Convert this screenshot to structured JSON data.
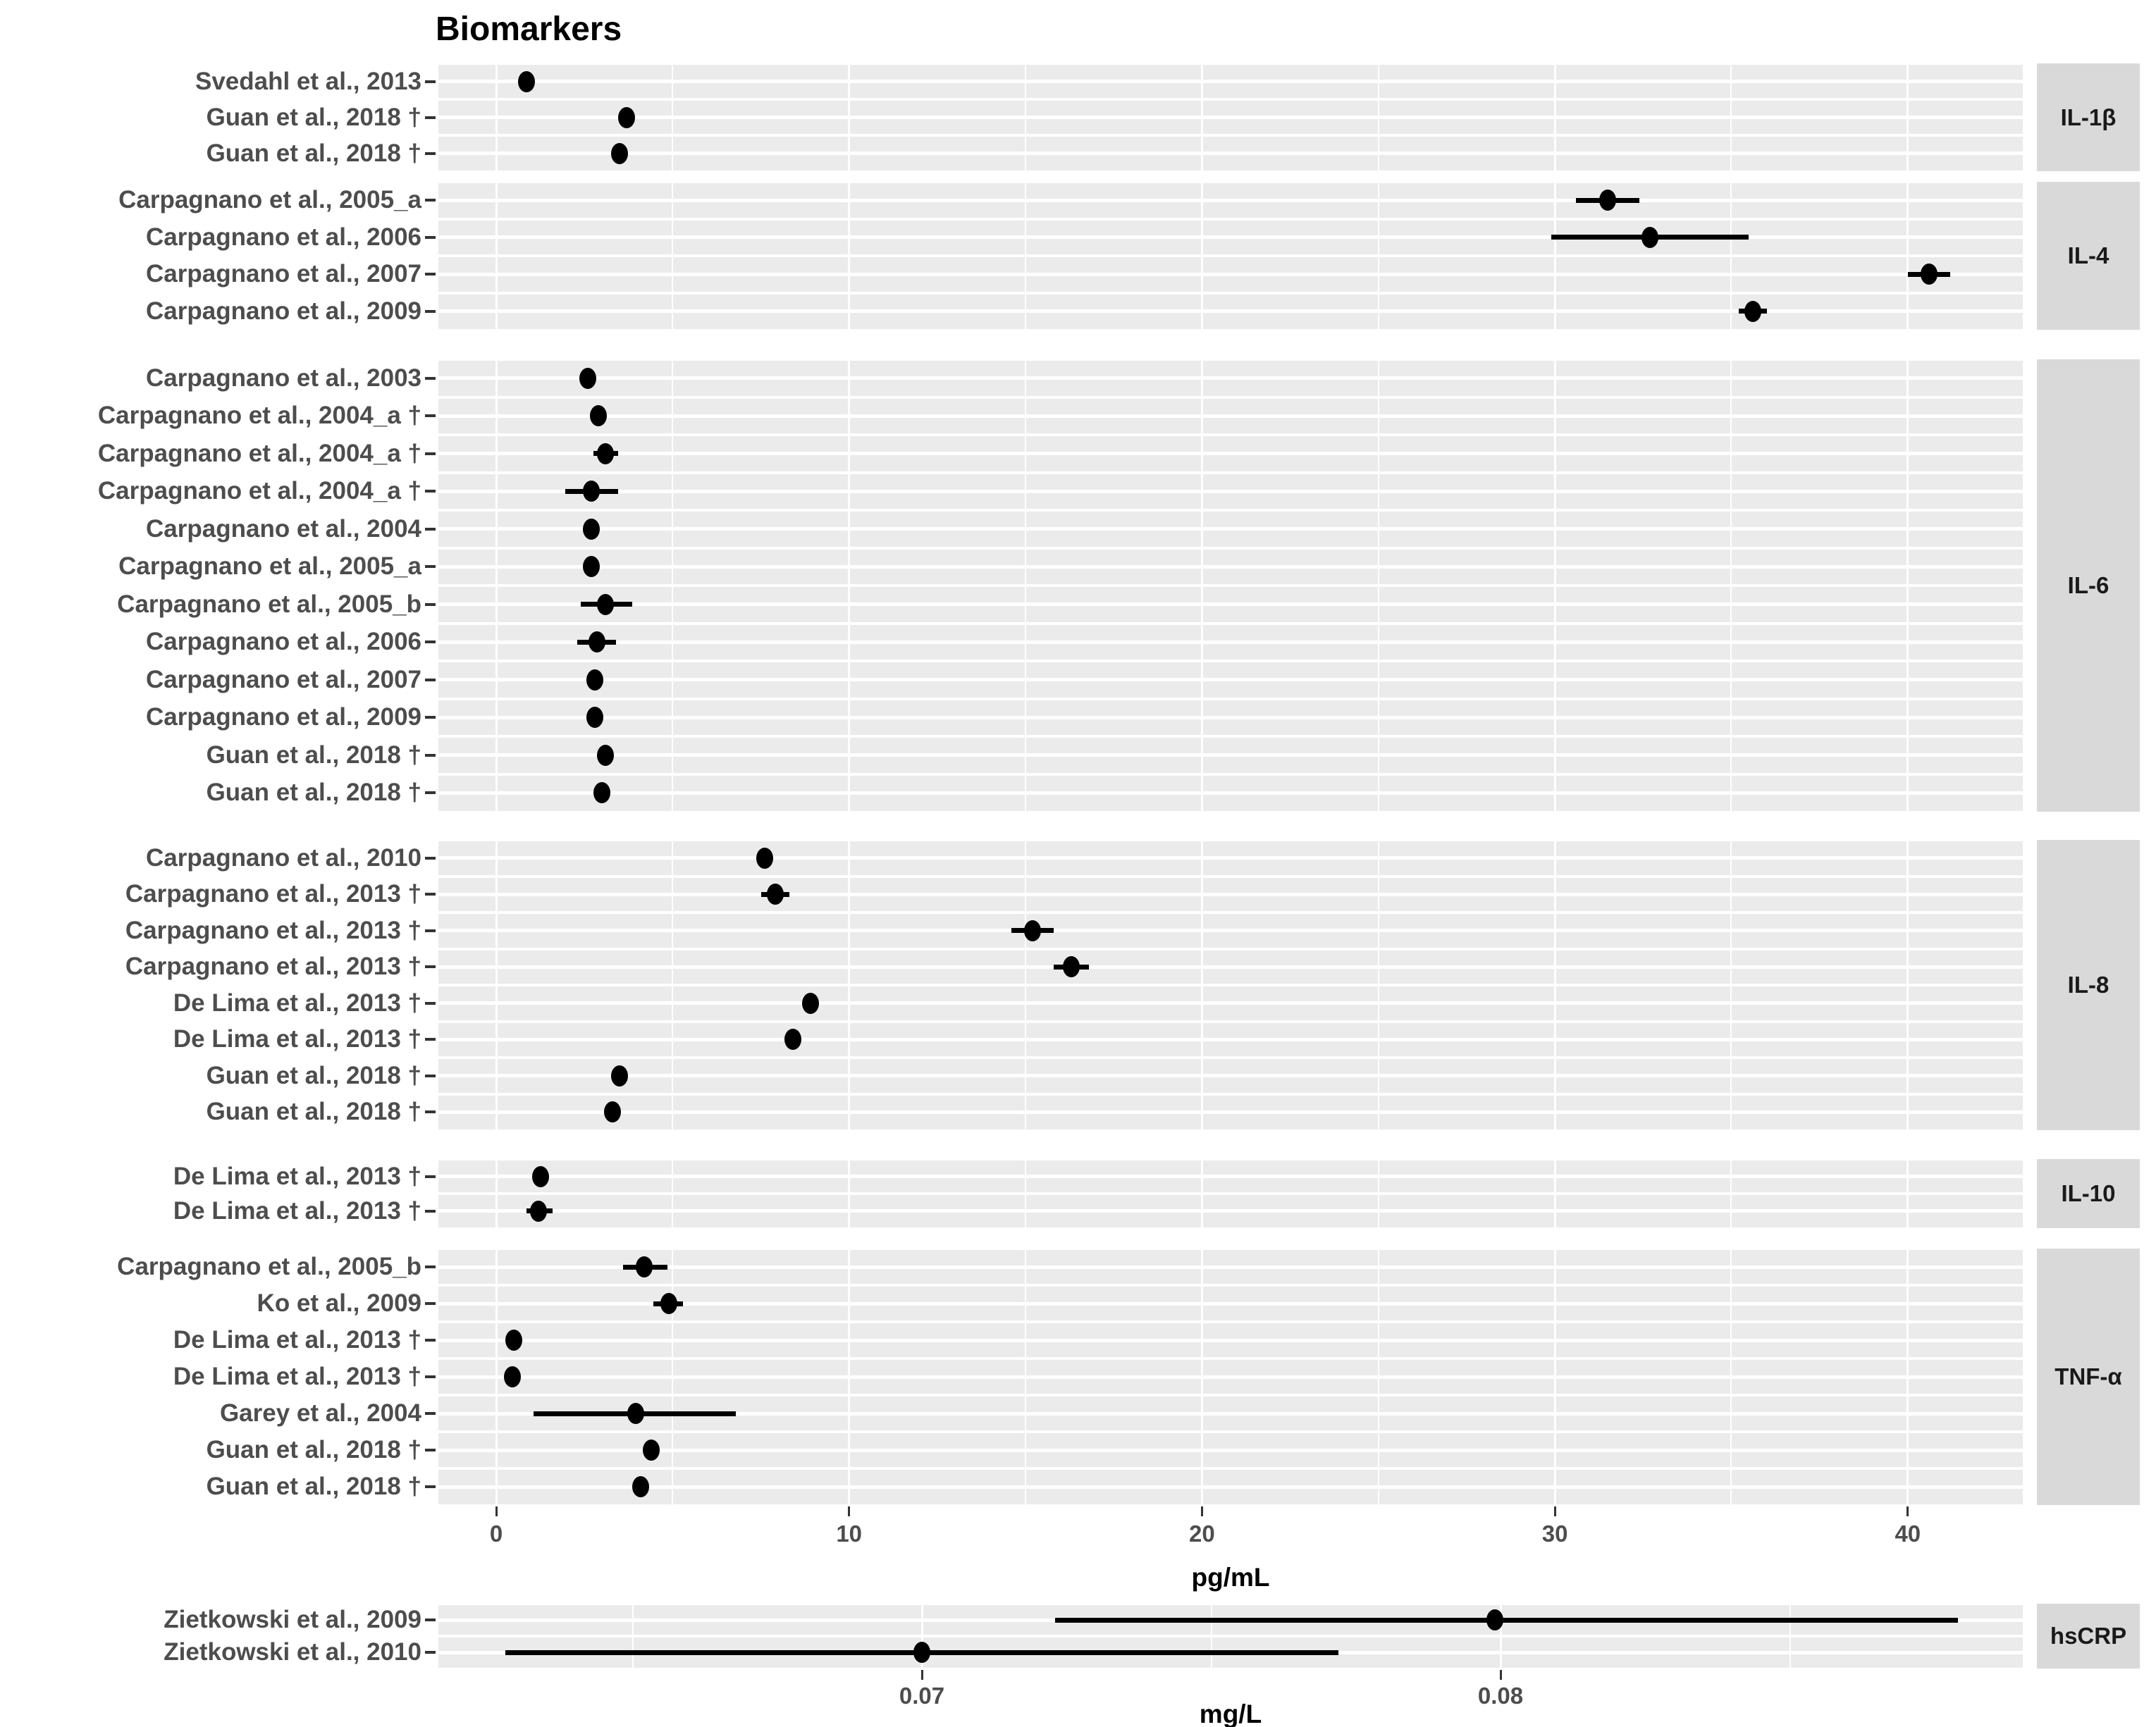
{
  "title": "Biomarkers",
  "colors": {
    "panel_bg": "#ebebeb",
    "grid": "#ffffff",
    "strip_bg": "#d9d9d9",
    "point": "#000000",
    "axis_text": "#4d4d4d",
    "title_text": "#000000"
  },
  "chart_data": {
    "type": "scatter",
    "subtype": "forest-plot-with-error-bars",
    "title": "Biomarkers",
    "legend": "none",
    "x_axis_pg": {
      "label": "pg/mL",
      "ticks": [
        {
          "v": 0,
          "label": "0"
        },
        {
          "v": 10,
          "label": "10"
        },
        {
          "v": 20,
          "label": "20"
        },
        {
          "v": 30,
          "label": "30"
        },
        {
          "v": 40,
          "label": "40"
        }
      ],
      "minor_ticks": [
        5,
        15,
        25,
        35
      ],
      "range": [
        -1.65,
        43.3
      ]
    },
    "x_axis_mg": {
      "label": "mg/L",
      "ticks": [
        {
          "v": 0.07,
          "label": "0.07"
        },
        {
          "v": 0.08,
          "label": "0.08"
        }
      ],
      "minor_ticks": [
        0.065,
        0.075,
        0.085
      ],
      "range": [
        0.0616,
        0.0889
      ]
    },
    "panels": [
      {
        "facet": "IL-1β",
        "unit": "pg/mL",
        "rows": [
          {
            "study": "Svedahl et al., 2013",
            "value": 0.85,
            "lo": null,
            "hi": null
          },
          {
            "study": "Guan et al., 2018 †",
            "value": 3.7,
            "lo": 3.5,
            "hi": 3.9
          },
          {
            "study": "Guan et al., 2018 †",
            "value": 3.5,
            "lo": 3.3,
            "hi": 3.7
          }
        ]
      },
      {
        "facet": "IL-4",
        "unit": "pg/mL",
        "rows": [
          {
            "study": "Carpagnano et al., 2005_a",
            "value": 31.5,
            "lo": 30.6,
            "hi": 32.4
          },
          {
            "study": "Carpagnano et al., 2006",
            "value": 32.7,
            "lo": 29.9,
            "hi": 35.5
          },
          {
            "study": "Carpagnano et al., 2007",
            "value": 40.6,
            "lo": 40.0,
            "hi": 41.2
          },
          {
            "study": "Carpagnano et al., 2009",
            "value": 35.6,
            "lo": 35.2,
            "hi": 36.0
          }
        ]
      },
      {
        "facet": "IL-6",
        "unit": "pg/mL",
        "rows": [
          {
            "study": "Carpagnano et al., 2003",
            "value": 2.6,
            "lo": null,
            "hi": null
          },
          {
            "study": "Carpagnano et al., 2004_a †",
            "value": 2.9,
            "lo": null,
            "hi": null
          },
          {
            "study": "Carpagnano et al., 2004_a †",
            "value": 3.1,
            "lo": 2.75,
            "hi": 3.45
          },
          {
            "study": "Carpagnano et al., 2004_a †",
            "value": 2.7,
            "lo": 1.95,
            "hi": 3.45
          },
          {
            "study": "Carpagnano et al., 2004",
            "value": 2.7,
            "lo": null,
            "hi": null
          },
          {
            "study": "Carpagnano et al., 2005_a",
            "value": 2.7,
            "lo": null,
            "hi": null
          },
          {
            "study": "Carpagnano et al., 2005_b",
            "value": 3.1,
            "lo": 2.4,
            "hi": 3.85
          },
          {
            "study": "Carpagnano et al., 2006",
            "value": 2.85,
            "lo": 2.3,
            "hi": 3.4
          },
          {
            "study": "Carpagnano et al., 2007",
            "value": 2.8,
            "lo": null,
            "hi": null
          },
          {
            "study": "Carpagnano et al., 2009",
            "value": 2.8,
            "lo": null,
            "hi": null
          },
          {
            "study": "Guan et al., 2018 †",
            "value": 3.1,
            "lo": null,
            "hi": null
          },
          {
            "study": "Guan et al., 2018 †",
            "value": 3.0,
            "lo": null,
            "hi": null
          }
        ]
      },
      {
        "facet": "IL-8",
        "unit": "pg/mL",
        "rows": [
          {
            "study": "Carpagnano et al., 2010",
            "value": 7.6,
            "lo": null,
            "hi": null
          },
          {
            "study": "Carpagnano et al., 2013 †",
            "value": 7.9,
            "lo": 7.5,
            "hi": 8.3
          },
          {
            "study": "Carpagnano et al., 2013 †",
            "value": 15.2,
            "lo": 14.6,
            "hi": 15.8
          },
          {
            "study": "Carpagnano et al., 2013 †",
            "value": 16.3,
            "lo": 15.8,
            "hi": 16.8
          },
          {
            "study": "De Lima et al., 2013 †",
            "value": 8.9,
            "lo": null,
            "hi": null
          },
          {
            "study": "De Lima et al., 2013 †",
            "value": 8.4,
            "lo": null,
            "hi": null
          },
          {
            "study": "Guan et al., 2018 †",
            "value": 3.5,
            "lo": null,
            "hi": null
          },
          {
            "study": "Guan et al., 2018 †",
            "value": 3.3,
            "lo": null,
            "hi": null
          }
        ]
      },
      {
        "facet": "IL-10",
        "unit": "pg/mL",
        "rows": [
          {
            "study": "De Lima et al., 2013 †",
            "value": 1.25,
            "lo": null,
            "hi": null
          },
          {
            "study": "De Lima et al., 2013 †",
            "value": 1.2,
            "lo": 0.85,
            "hi": 1.6
          }
        ]
      },
      {
        "facet": "TNF-α",
        "unit": "pg/mL",
        "rows": [
          {
            "study": "Carpagnano et al., 2005_b",
            "value": 4.2,
            "lo": 3.6,
            "hi": 4.85
          },
          {
            "study": "Ko et al., 2009",
            "value": 4.9,
            "lo": 4.45,
            "hi": 5.3
          },
          {
            "study": "De Lima et al., 2013 †",
            "value": 0.5,
            "lo": null,
            "hi": null
          },
          {
            "study": "De Lima et al., 2013 †",
            "value": 0.45,
            "lo": null,
            "hi": null
          },
          {
            "study": "Garey et al., 2004",
            "value": 3.95,
            "lo": 1.05,
            "hi": 6.8
          },
          {
            "study": "Guan et al., 2018 †",
            "value": 4.4,
            "lo": null,
            "hi": null
          },
          {
            "study": "Guan et al., 2018 †",
            "value": 4.1,
            "lo": null,
            "hi": null
          }
        ]
      },
      {
        "facet": "hsCRP",
        "unit": "mg/L",
        "rows": [
          {
            "study": "Zietkowski et al., 2009",
            "value": 0.0799,
            "lo": 0.0723,
            "hi": 0.0879
          },
          {
            "study": "Zietkowski et al., 2010",
            "value": 0.07,
            "lo": 0.0628,
            "hi": 0.0772
          }
        ]
      }
    ]
  }
}
